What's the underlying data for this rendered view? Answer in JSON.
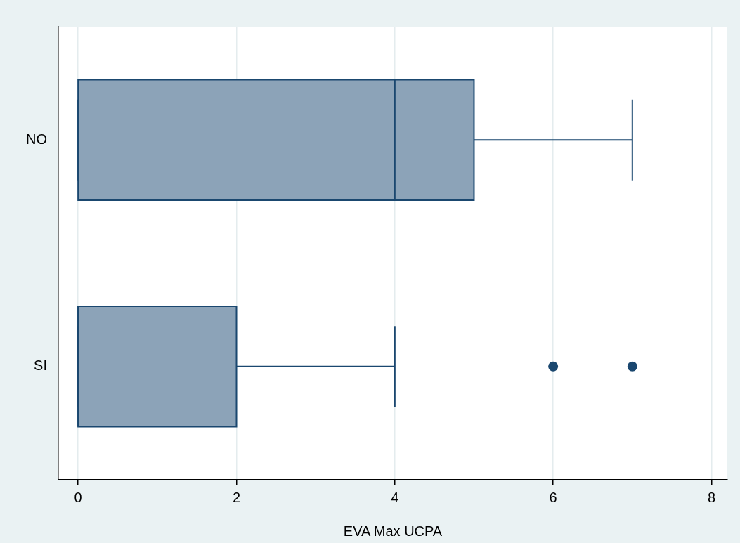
{
  "chart_data": {
    "type": "box",
    "orientation": "horizontal",
    "xlabel": "EVA Max UCPA",
    "categories": [
      "NO",
      "SI"
    ],
    "color": "#8ca3b8",
    "boxes": [
      {
        "low": 0,
        "q1": 0,
        "median": 4,
        "q3": 5,
        "high": 7
      },
      {
        "low": 0,
        "q1": 0,
        "median": 0,
        "q3": 2,
        "high": 4,
        "outliers": [
          6,
          7
        ]
      }
    ],
    "xlim": [
      -0.25,
      8.2
    ],
    "xticks": [
      0,
      2,
      4,
      6,
      8
    ],
    "grid": "x",
    "legend": false
  }
}
